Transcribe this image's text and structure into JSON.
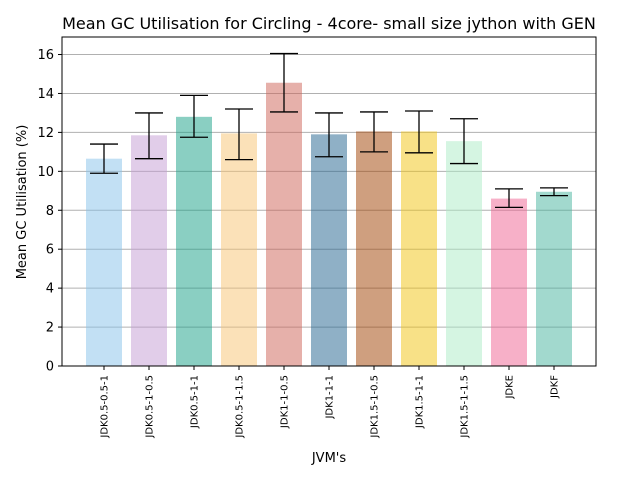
{
  "chart_data": {
    "type": "bar",
    "title": "Mean GC Utilisation for Circling - 4core- small size jython with GEN",
    "xlabel": "JVM's",
    "ylabel": "Mean GC Utilisation (%)",
    "ylim": [
      0,
      16.9
    ],
    "yticks": [
      "0",
      "2",
      "4",
      "6",
      "8",
      "10",
      "12",
      "14",
      "16"
    ],
    "grid": "horizontal",
    "categories": [
      "JDK0.5-0.5-1",
      "JDK0.5-1-0.5",
      "JDK0.5-1-1",
      "JDK0.5-1-1.5",
      "JDK1-1-0.5",
      "JDK1-1-1",
      "JDK1.5-1-0.5",
      "JDK1.5-1-1",
      "JDK1.5-1-1.5",
      "JDKE",
      "JDKF"
    ],
    "values": [
      10.65,
      11.85,
      12.8,
      11.95,
      14.55,
      11.9,
      12.05,
      12.05,
      11.55,
      8.6,
      8.95
    ],
    "error_low": [
      9.9,
      10.65,
      11.75,
      10.6,
      13.05,
      10.75,
      11.0,
      10.95,
      10.4,
      8.15,
      8.75
    ],
    "error_high": [
      11.4,
      13.0,
      13.9,
      13.2,
      16.05,
      13.0,
      13.05,
      13.1,
      12.7,
      9.1,
      9.15
    ],
    "colors": [
      "#85C1E9",
      "#C39BD3",
      "#16A085",
      "#F8C471",
      "#CD6155",
      "#1F618D",
      "#A04000",
      "#F1C40F",
      "#ABEBC6",
      "#F06292",
      "#45B39D"
    ],
    "bar_opacity": 0.5
  }
}
